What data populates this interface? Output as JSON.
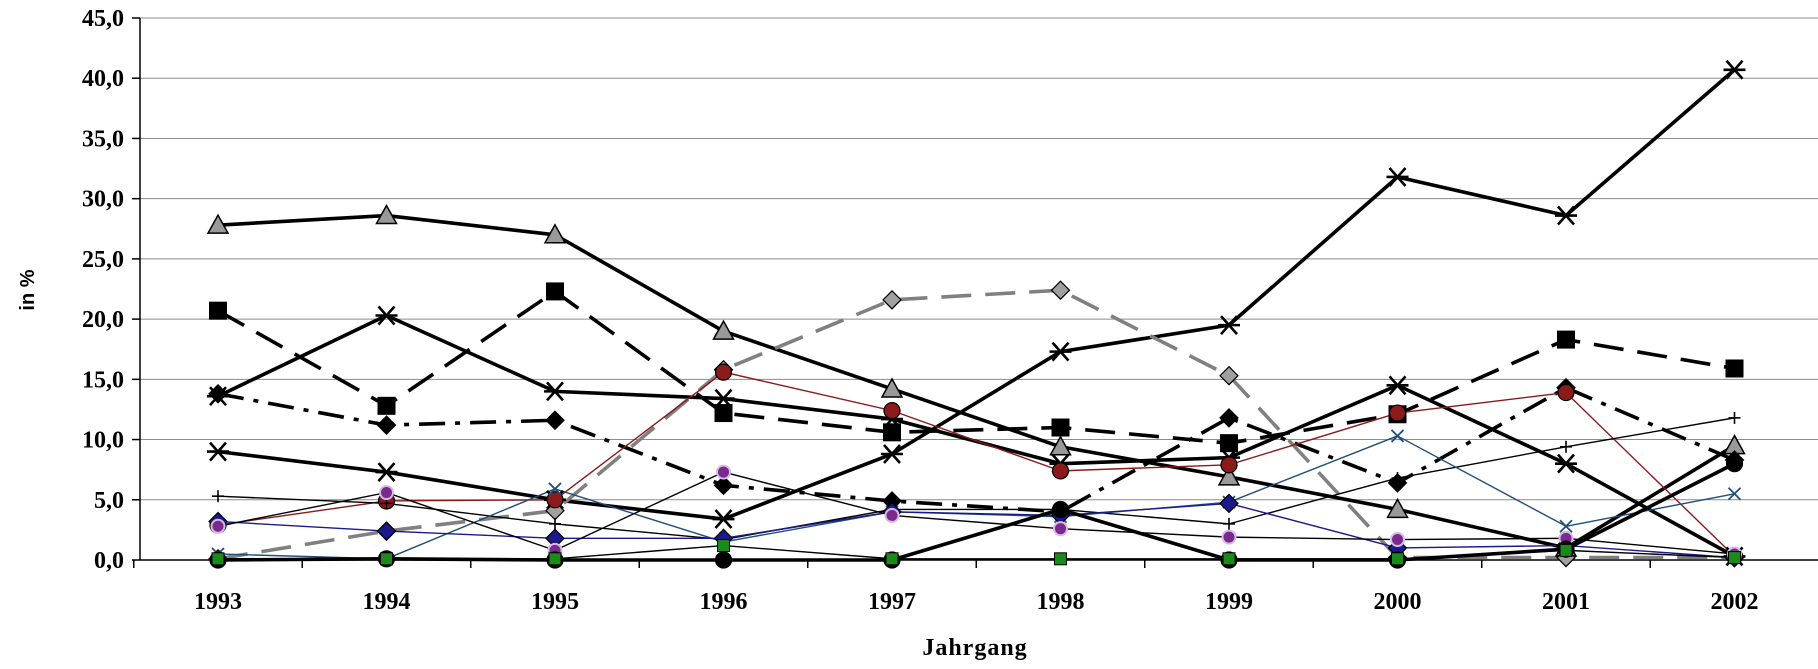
{
  "chart_data": {
    "type": "line",
    "title": "",
    "xlabel": "Jahrgang",
    "ylabel": "in %",
    "ylim": [
      0,
      45
    ],
    "yticks": [
      "0,0",
      "5,0",
      "10,0",
      "15,0",
      "20,0",
      "25,0",
      "30,0",
      "35,0",
      "40,0",
      "45,0"
    ],
    "grid": "horizontal",
    "legend": "none",
    "categories": [
      "1993",
      "1994",
      "1995",
      "1996",
      "1997",
      "1998",
      "1999",
      "2000",
      "2001",
      "2002"
    ],
    "series": [
      {
        "values": [
          27.8,
          28.6,
          27.0,
          19.0,
          14.2,
          9.4,
          6.9,
          4.2,
          1.0,
          9.5
        ],
        "color": "#000000",
        "marker": "triangle",
        "line": "solid-thick"
      },
      {
        "values": [
          20.7,
          12.8,
          22.3,
          12.2,
          10.6,
          11.0,
          9.7,
          12.1,
          18.3,
          15.9
        ],
        "color": "#000000",
        "marker": "square",
        "line": "dashed-thick"
      },
      {
        "values": [
          13.6,
          20.3,
          14.0,
          13.4,
          11.7,
          8.0,
          8.5,
          14.5,
          8.0,
          0.3
        ],
        "color": "#000000",
        "marker": "asterisk",
        "line": "solid-thick"
      },
      {
        "values": [
          13.8,
          11.2,
          11.6,
          6.2,
          4.9,
          4.0,
          11.8,
          6.4,
          14.3,
          8.3
        ],
        "color": "#000000",
        "marker": "diamond",
        "line": "dashdot-thick"
      },
      {
        "values": [
          9.0,
          7.3,
          5.0,
          3.4,
          8.8,
          17.3,
          19.5,
          31.8,
          28.6,
          40.7
        ],
        "color": "#000000",
        "marker": "asterisk",
        "line": "solid-thick"
      },
      {
        "values": [
          0.1,
          2.4,
          4.1,
          15.8,
          21.6,
          22.4,
          15.3,
          0.2,
          0.2,
          0.2
        ],
        "color": "#808080",
        "marker": "diamond",
        "line": "dashed-thick"
      },
      {
        "values": [
          2.9,
          4.9,
          5.0,
          15.6,
          12.4,
          7.4,
          7.9,
          12.2,
          13.9,
          0.3
        ],
        "color": "#8b1a1a",
        "marker": "circle",
        "line": "solid-thin"
      },
      {
        "values": [
          5.3,
          4.7,
          3.0,
          1.7,
          4.2,
          4.2,
          3.0,
          6.8,
          9.4,
          11.8
        ],
        "color": "#000000",
        "marker": "plus",
        "line": "solid-thin"
      },
      {
        "values": [
          0.5,
          0.1,
          5.9,
          1.5,
          4.0,
          3.6,
          4.8,
          10.3,
          2.8,
          5.5
        ],
        "color": "#1f4e79",
        "marker": "x",
        "line": "solid-thin"
      },
      {
        "values": [
          3.2,
          2.4,
          1.8,
          1.8,
          4.0,
          3.7,
          4.7,
          1.0,
          1.2,
          0.2
        ],
        "color": "#1a1a8c",
        "marker": "diamond",
        "line": "solid-thin"
      },
      {
        "values": [
          2.8,
          5.6,
          0.8,
          7.3,
          3.7,
          2.6,
          1.9,
          1.7,
          1.8,
          0.5
        ],
        "color": "#000000",
        "marker": "circle-purple",
        "line": "solid-thin"
      },
      {
        "values": [
          0.0,
          0.1,
          0.0,
          0.0,
          0.0,
          4.2,
          0.0,
          0.0,
          0.9,
          8.0
        ],
        "color": "#000000",
        "marker": "circle",
        "line": "solid-thick"
      },
      {
        "values": [
          0.1,
          0.1,
          0.1,
          1.2,
          0.1,
          0.1,
          0.1,
          0.1,
          0.8,
          0.2
        ],
        "color": "#000000",
        "marker": "square-green",
        "line": "solid-thin"
      }
    ]
  }
}
